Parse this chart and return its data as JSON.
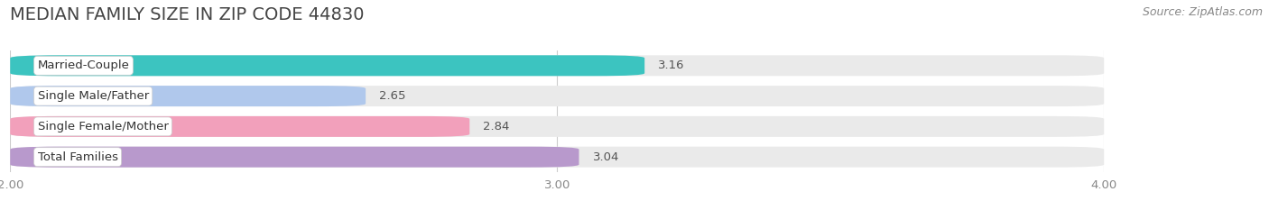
{
  "title": "MEDIAN FAMILY SIZE IN ZIP CODE 44830",
  "source": "Source: ZipAtlas.com",
  "categories": [
    "Married-Couple",
    "Single Male/Father",
    "Single Female/Mother",
    "Total Families"
  ],
  "values": [
    3.16,
    2.65,
    2.84,
    3.04
  ],
  "colors": [
    "#3cc4c0",
    "#b0c8ec",
    "#f2a0bb",
    "#b899cc"
  ],
  "xlim": [
    2.0,
    4.0
  ],
  "xticks": [
    2.0,
    3.0,
    4.0
  ],
  "xtick_labels": [
    "2.00",
    "3.00",
    "4.00"
  ],
  "background_color": "#ffffff",
  "bar_bg_color": "#eaeaea",
  "title_fontsize": 14,
  "label_fontsize": 9.5,
  "value_fontsize": 9.5,
  "source_fontsize": 9,
  "bar_height": 0.68,
  "bar_gap": 0.32
}
